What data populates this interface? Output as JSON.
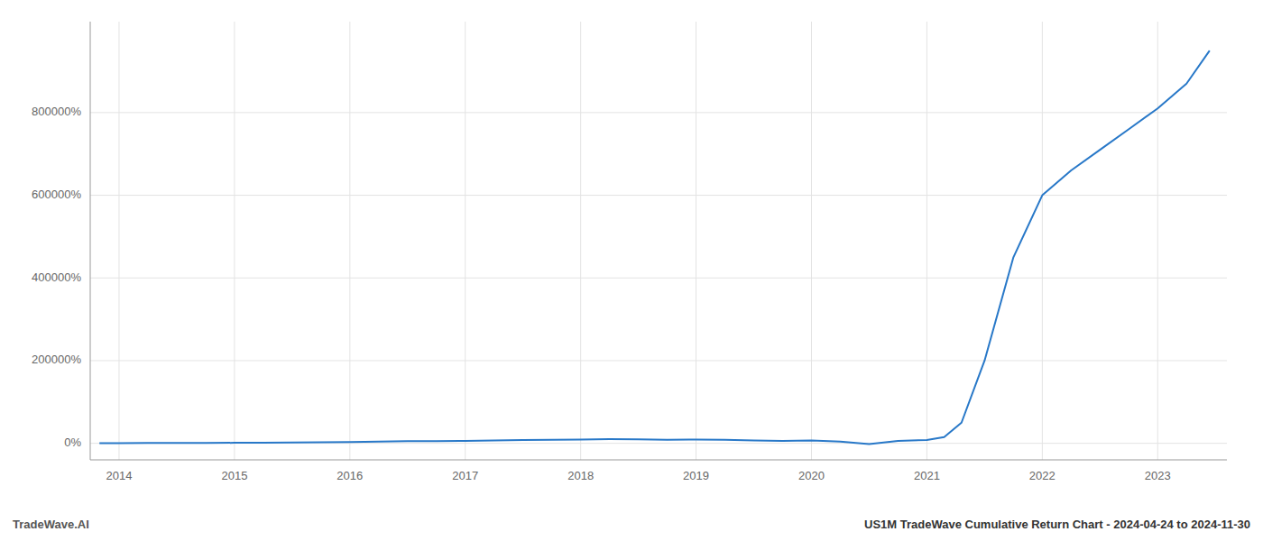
{
  "chart_data": {
    "type": "line",
    "x": [
      2013.83,
      2014.0,
      2014.25,
      2014.5,
      2014.75,
      2015.0,
      2015.25,
      2015.5,
      2015.75,
      2016.0,
      2016.25,
      2016.5,
      2016.75,
      2017.0,
      2017.25,
      2017.5,
      2017.75,
      2018.0,
      2018.25,
      2018.5,
      2018.75,
      2019.0,
      2019.25,
      2019.5,
      2019.75,
      2020.0,
      2020.25,
      2020.5,
      2020.75,
      2021.0,
      2021.15,
      2021.3,
      2021.5,
      2021.75,
      2022.0,
      2022.25,
      2022.5,
      2022.75,
      2023.0,
      2023.25,
      2023.45
    ],
    "values": [
      500,
      600,
      700,
      800,
      1000,
      1200,
      1500,
      2000,
      2500,
      3000,
      4000,
      5000,
      5500,
      6000,
      7000,
      8000,
      8500,
      9000,
      10000,
      9500,
      8500,
      9000,
      8500,
      7000,
      6000,
      7000,
      4000,
      -2000,
      6000,
      8000,
      15000,
      50000,
      200000,
      450000,
      600000,
      660000,
      710000,
      760000,
      810000,
      870000,
      950000
    ],
    "color": "#2878c8",
    "xlim": [
      2013.75,
      2023.6
    ],
    "xticks": [
      2014,
      2015,
      2016,
      2017,
      2018,
      2019,
      2020,
      2021,
      2022,
      2023
    ],
    "ylim": [
      -40000,
      1020000
    ],
    "yticks": [
      {
        "value": 0,
        "label": "0%"
      },
      {
        "value": 200000,
        "label": "200000%"
      },
      {
        "value": 400000,
        "label": "400000%"
      },
      {
        "value": 600000,
        "label": "600000%"
      },
      {
        "value": 800000,
        "label": "800000%"
      }
    ],
    "grid": true,
    "annotations": [
      "TradeWave.AI",
      "US1M TradeWave Cumulative Return Chart - 2024-04-24 to 2024-11-30"
    ]
  }
}
